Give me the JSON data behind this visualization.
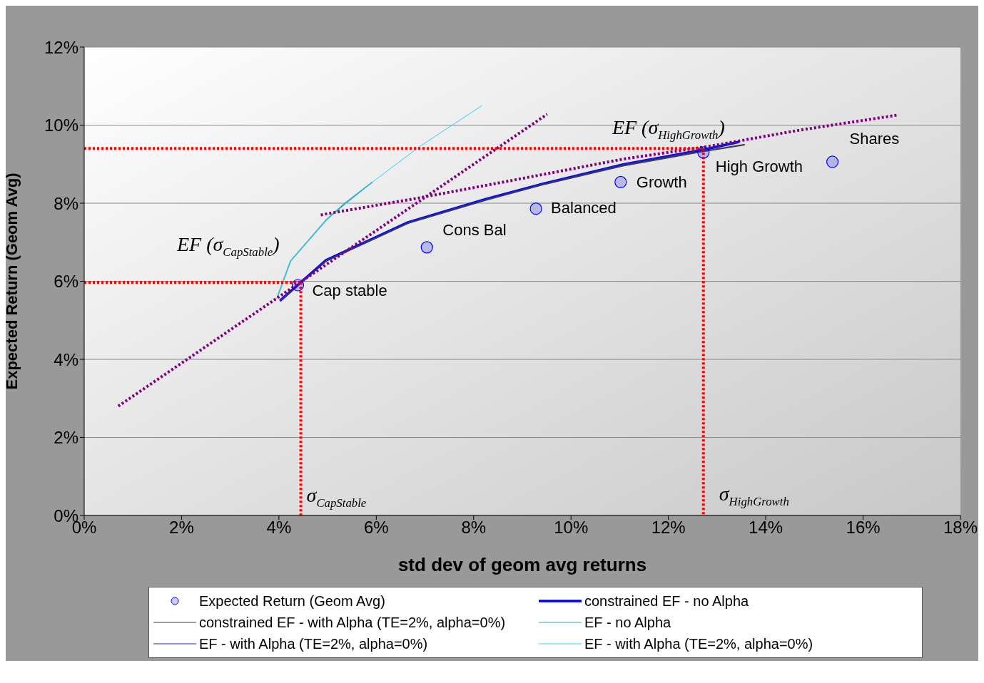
{
  "chart_data": {
    "type": "line",
    "xlabel": "std dev of geom avg returns",
    "ylabel": "Expected Return (Geom Avg)",
    "xlim": [
      0,
      18
    ],
    "ylim": [
      0,
      12
    ],
    "xticks": [
      {
        "value": 0,
        "label": "0%"
      },
      {
        "value": 2,
        "label": "2%"
      },
      {
        "value": 4,
        "label": "4%"
      },
      {
        "value": 6,
        "label": "6%"
      },
      {
        "value": 8,
        "label": "8%"
      },
      {
        "value": 10,
        "label": "10%"
      },
      {
        "value": 12,
        "label": "12%"
      },
      {
        "value": 14,
        "label": "14%"
      },
      {
        "value": 16,
        "label": "16%"
      },
      {
        "value": 18,
        "label": "18%"
      }
    ],
    "yticks": [
      {
        "value": 0,
        "label": "0%"
      },
      {
        "value": 2,
        "label": "2%"
      },
      {
        "value": 4,
        "label": "4%"
      },
      {
        "value": 6,
        "label": "6%"
      },
      {
        "value": 8,
        "label": "8%"
      },
      {
        "value": 10,
        "label": "10%"
      },
      {
        "value": 12,
        "label": "12%"
      }
    ],
    "grid": "y",
    "legend": "bottom",
    "series": [
      {
        "name": "Expected Return (Geom Avg)",
        "type": "scatter",
        "marker": "circle",
        "color": "#0000ff",
        "x": [
          4.39,
          7.04,
          9.28,
          11.02,
          12.72,
          15.37
        ],
        "values": [
          5.9,
          6.87,
          7.86,
          8.54,
          9.3,
          9.06
        ]
      },
      {
        "name": "constrained EF - no Alpha",
        "color": "#0000ff",
        "line_style": "solid",
        "x": [
          4.02,
          4.97,
          6.65,
          8.24,
          9.43,
          11.07,
          12.72,
          13.45
        ],
        "values": [
          5.5,
          6.54,
          7.51,
          8.1,
          8.5,
          8.99,
          9.37,
          9.57
        ]
      },
      {
        "name": "constrained EF - with Alpha (TE=2%, alpha=0%)",
        "color": "#404040",
        "line_style": "solid",
        "x": [
          4.02,
          4.97,
          6.65,
          8.24,
          9.43,
          11.07,
          12.72,
          13.57
        ],
        "values": [
          5.5,
          6.52,
          7.49,
          8.08,
          8.48,
          8.96,
          9.33,
          9.5
        ]
      },
      {
        "name": "EF - no Alpha",
        "type": "line",
        "color": "#33aaaa",
        "line_style": "solid",
        "x": [
          3.96,
          4.24,
          4.97,
          5.36,
          5.92
        ],
        "values": [
          5.57,
          6.52,
          7.57,
          8.0,
          8.54
        ]
      },
      {
        "name": "EF - with Alpha (TE=2%, alpha=0%)",
        "type": "line",
        "color": "#2020c0",
        "line_style": "solid",
        "x": [
          4.02,
          4.97,
          6.65,
          8.24,
          9.43,
          11.07,
          12.72,
          13.45
        ],
        "values": [
          5.5,
          6.54,
          7.51,
          8.1,
          8.5,
          8.99,
          9.37,
          9.57
        ]
      },
      {
        "name": "EF - with Alpha (TE=2%, alpha=0%)",
        "type": "line",
        "color": "#33ccff",
        "line_style": "solid",
        "x": [
          3.96,
          4.24,
          4.97,
          5.92,
          6.9,
          8.17
        ],
        "values": [
          5.57,
          6.52,
          7.57,
          8.54,
          9.46,
          10.5
        ]
      },
      {
        "type": "line",
        "color": "#800080",
        "line_style": "dotted",
        "x": [
          0.7,
          9.51
        ],
        "values": [
          2.8,
          10.28
        ]
      },
      {
        "type": "line",
        "color": "#800080",
        "line_style": "dotted",
        "x": [
          4.86,
          6.9,
          8.69,
          11.07,
          12.85,
          14.64,
          16.72
        ],
        "values": [
          7.7,
          8.14,
          8.56,
          9.13,
          9.46,
          9.86,
          10.26
        ]
      },
      {
        "type": "line",
        "color": "#ff0000",
        "line_style": "dotted",
        "x": [
          0,
          12.72
        ],
        "values": [
          9.4,
          9.4
        ]
      },
      {
        "type": "line",
        "color": "#ff0000",
        "line_style": "dotted",
        "x": [
          12.72,
          12.72
        ],
        "values": [
          9.4,
          0
        ]
      },
      {
        "type": "line",
        "color": "#ff0000",
        "line_style": "dotted",
        "x": [
          0,
          4.45
        ],
        "values": [
          5.97,
          5.97
        ]
      },
      {
        "type": "line",
        "color": "#ff0000",
        "line_style": "dotted",
        "x": [
          4.45,
          4.45
        ],
        "values": [
          5.97,
          0
        ]
      }
    ],
    "annotations": [
      {
        "text": "Cap stable",
        "x": 4.39,
        "y": 5.9
      },
      {
        "text": "Cons Bal",
        "x": 7.04,
        "y": 6.87
      },
      {
        "text": "Balanced",
        "x": 9.28,
        "y": 7.86
      },
      {
        "text": "Growth",
        "x": 11.02,
        "y": 8.54
      },
      {
        "text": "High Growth",
        "x": 12.72,
        "y": 9.3
      },
      {
        "text": "Shares",
        "x": 15.37,
        "y": 9.06
      },
      {
        "text": "EF (σ$_{CapStable}$)",
        "x": 4.45,
        "y": 5.97
      },
      {
        "text": "EF (σ$_{HighGrowth}$)",
        "x": 12.72,
        "y": 9.4
      },
      {
        "text": "σ$_{CapStable}$",
        "x": 4.45,
        "y": 0
      },
      {
        "text": "σ$_{HighGrowth}$",
        "x": 12.72,
        "y": 0
      }
    ]
  }
}
